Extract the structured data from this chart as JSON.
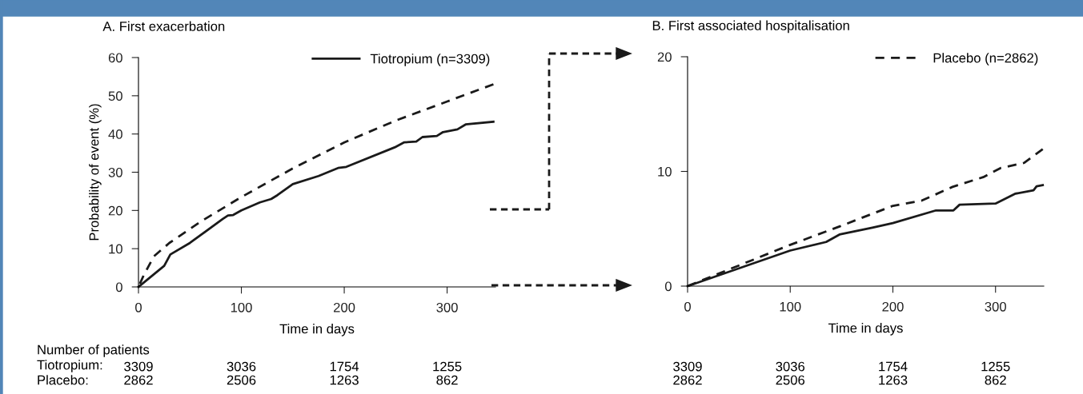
{
  "chart_data": [
    {
      "type": "line",
      "title": "A. First exacerbation",
      "xlabel": "Time in days",
      "ylabel": "Probability of event (%)",
      "xlim": [
        0,
        347
      ],
      "ylim": [
        0,
        60
      ],
      "xticks": [
        0,
        100,
        200,
        300
      ],
      "yticks": [
        0,
        10,
        20,
        30,
        40,
        50,
        60
      ],
      "grid": false,
      "legend": "top right",
      "marker": "none",
      "series": [
        {
          "name": "Tiotropium (n=3309)",
          "color": "#1a1a1a",
          "line_style": "solid",
          "x": [
            0,
            25,
            31,
            50,
            82,
            87,
            92,
            100,
            118,
            129,
            135,
            150,
            175,
            194,
            202,
            249,
            258,
            270,
            276,
            290,
            296,
            310,
            318,
            345
          ],
          "values": [
            0,
            5.5,
            8.5,
            11.5,
            17.8,
            18.7,
            18.8,
            20,
            22.1,
            23,
            24,
            26.9,
            29,
            31.1,
            31.4,
            36.5,
            37.8,
            38,
            39.2,
            39.5,
            40.5,
            41.2,
            42.5,
            43.2
          ]
        },
        {
          "color": "#1a1a1a",
          "line_style": "dashed",
          "x": [
            0,
            5,
            15,
            30,
            60,
            100,
            150,
            200,
            250,
            300,
            345
          ],
          "values": [
            0,
            3,
            8,
            11.5,
            17,
            23.5,
            31,
            37.8,
            43.5,
            48.5,
            53
          ]
        }
      ],
      "annotations": [
        "Number of patients",
        "Tiotropium:",
        "Placebo:",
        "3309",
        "3036",
        "1754",
        "1255",
        "2862",
        "2506",
        "1263",
        "862"
      ]
    },
    {
      "type": "line",
      "title": "B. First associated hospitalisation",
      "xlabel": "Time in days",
      "xlim": [
        0,
        347
      ],
      "ylim": [
        0,
        20
      ],
      "xticks": [
        0,
        100,
        200,
        300
      ],
      "yticks": [
        0,
        10,
        20
      ],
      "grid": false,
      "legend": "top right",
      "marker": "none",
      "series": [
        {
          "color": "#1a1a1a",
          "line_style": "solid",
          "x": [
            0,
            100,
            135,
            148,
            180,
            200,
            242,
            259,
            265,
            300,
            319,
            337,
            340,
            346
          ],
          "values": [
            0,
            3.1,
            3.85,
            4.5,
            5.1,
            5.5,
            6.6,
            6.6,
            7.1,
            7.2,
            8.05,
            8.35,
            8.7,
            8.8
          ]
        },
        {
          "name": "Placebo (n=2862)",
          "color": "#1a1a1a",
          "line_style": "dashed",
          "x": [
            0,
            50,
            100,
            148,
            200,
            228,
            258,
            288,
            305,
            328,
            346
          ],
          "values": [
            0,
            1.8,
            3.6,
            5.2,
            7.0,
            7.45,
            8.65,
            9.5,
            10.3,
            10.75,
            11.95
          ]
        }
      ],
      "annotations": [
        "3309",
        "3036",
        "1754",
        "1255",
        "2862",
        "2506",
        "1263",
        "862"
      ]
    }
  ]
}
